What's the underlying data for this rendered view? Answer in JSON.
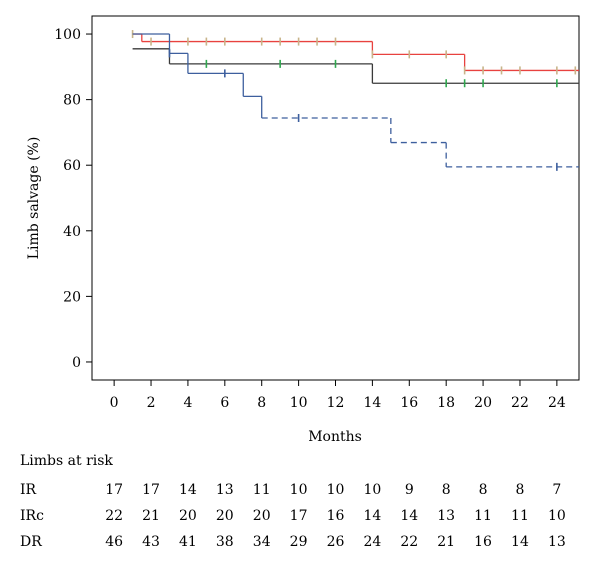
{
  "chart_data": {
    "type": "line",
    "title": "",
    "xlabel": "Months",
    "ylabel": "Limb salvage (%)",
    "xlim": [
      -1.2,
      25.2
    ],
    "ylim": [
      -5.5,
      105.5
    ],
    "xticks": [
      0,
      2,
      4,
      6,
      8,
      10,
      12,
      14,
      16,
      18,
      20,
      22,
      24
    ],
    "yticks": [
      0,
      20,
      40,
      60,
      80,
      100
    ],
    "grid": false,
    "legend": "none",
    "series": [
      {
        "color": "#e8423f",
        "censor_color": "#c8b48a",
        "dashed_after": null,
        "steps": [
          [
            1,
            100
          ],
          [
            1.5,
            97.7
          ],
          [
            14,
            93.8
          ],
          [
            19,
            88.9
          ],
          [
            25.2,
            88.9
          ]
        ],
        "censors": [
          1,
          2,
          4,
          5,
          6,
          8,
          9,
          10,
          11,
          12,
          14,
          16,
          18,
          19,
          20,
          21,
          22,
          24,
          25
        ]
      },
      {
        "color": "#3a3a3a",
        "censor_color": "#2fa84f",
        "dashed_after": null,
        "steps": [
          [
            1,
            95.5
          ],
          [
            3,
            90.9
          ],
          [
            14,
            85
          ],
          [
            25.2,
            85
          ]
        ],
        "censors": [
          5,
          9,
          12,
          18,
          19,
          20,
          24
        ]
      },
      {
        "color": "#3d5f9e",
        "censor_color": "#3d5f9e",
        "dashed_after": 8,
        "steps": [
          [
            1,
            100
          ],
          [
            3,
            94.1
          ],
          [
            4,
            88
          ],
          [
            7,
            81
          ],
          [
            8,
            74.4
          ],
          [
            15,
            66.9
          ],
          [
            18,
            59.5
          ],
          [
            25.2,
            59.5
          ]
        ],
        "censors": [
          3,
          6,
          10,
          24
        ]
      }
    ]
  },
  "risk_table": {
    "title": "Limbs at risk",
    "months": [
      0,
      2,
      4,
      6,
      8,
      10,
      12,
      14,
      16,
      18,
      20,
      22,
      24
    ],
    "rows": [
      {
        "label": "IR",
        "values": [
          "17",
          "17",
          "14",
          "13",
          "11",
          "10",
          "10",
          "10",
          "9",
          "8",
          "8",
          "8",
          "7"
        ]
      },
      {
        "label": "IRc",
        "values": [
          "22",
          "21",
          "20",
          "20",
          "20",
          "17",
          "16",
          "14",
          "14",
          "13",
          "11",
          "11",
          "10"
        ]
      },
      {
        "label": "DR",
        "values": [
          "46",
          "43",
          "41",
          "38",
          "34",
          "29",
          "26",
          "24",
          "22",
          "21",
          "16",
          "14",
          "13"
        ]
      }
    ]
  }
}
